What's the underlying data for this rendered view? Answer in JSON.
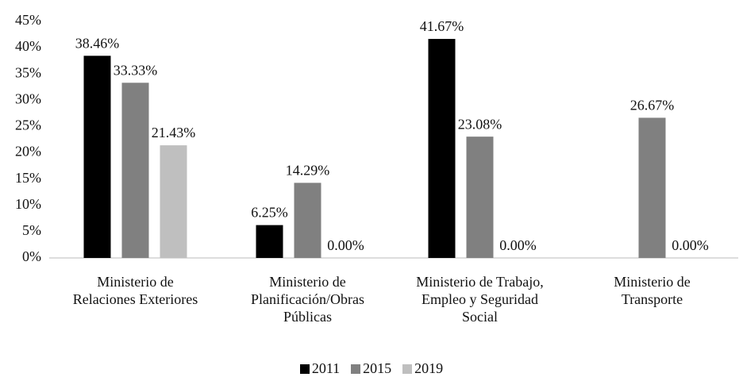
{
  "chart_data": {
    "type": "bar",
    "categories": [
      "Ministerio de\nRelaciones Exteriores",
      "Ministerio de\nPlanificación/Obras\nPúblicas",
      "Ministerio de Trabajo,\nEmpleo y Seguridad\nSocial",
      "Ministerio de\nTransporte"
    ],
    "series": [
      {
        "name": "2011",
        "color": "#000000",
        "values": [
          38.46,
          6.25,
          41.67,
          null
        ],
        "value_labels": [
          "38.46%",
          "6.25%",
          "41.67%",
          null
        ]
      },
      {
        "name": "2015",
        "color": "#808080",
        "values": [
          33.33,
          14.29,
          23.08,
          26.67
        ],
        "value_labels": [
          "33.33%",
          "14.29%",
          "23.08%",
          "26.67%"
        ]
      },
      {
        "name": "2019",
        "color": "#bfbfbf",
        "values": [
          21.43,
          0,
          0,
          0
        ],
        "value_labels": [
          "21.43%",
          "0.00%",
          "0.00%",
          "0.00%"
        ]
      }
    ],
    "ylim": [
      0,
      45
    ],
    "yticks": [
      {
        "value": 0,
        "label": "0%"
      },
      {
        "value": 5,
        "label": "5%"
      },
      {
        "value": 10,
        "label": "10%"
      },
      {
        "value": 15,
        "label": "15%"
      },
      {
        "value": 20,
        "label": "20%"
      },
      {
        "value": 25,
        "label": "25%"
      },
      {
        "value": 30,
        "label": "30%"
      },
      {
        "value": 35,
        "label": "35%"
      },
      {
        "value": 40,
        "label": "40%"
      },
      {
        "value": 45,
        "label": "45%"
      }
    ],
    "grid": false,
    "legend": "bottom"
  }
}
